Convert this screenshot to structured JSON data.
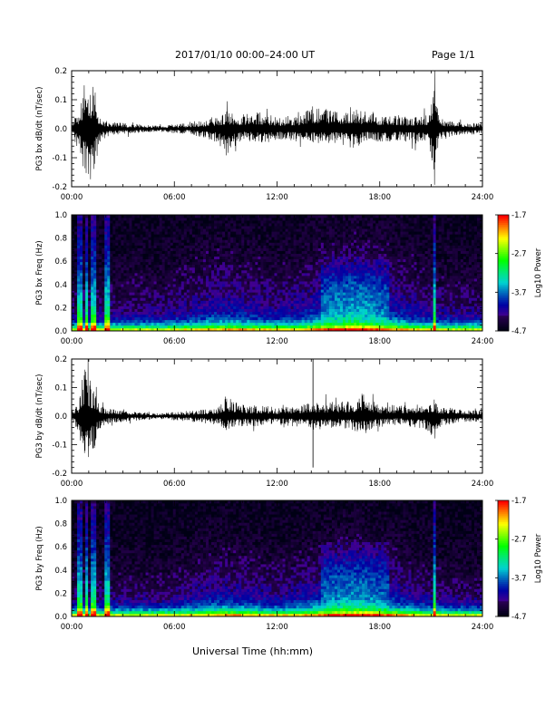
{
  "page": {
    "date_title": "2017/01/10   00:00–24:00 UT",
    "page_label": "Page 1/1",
    "x_axis_label": "Universal Time (hh:mm)"
  },
  "chart_data": [
    {
      "type": "line",
      "ylabel": "PG3 bx dB/dt (nT/sec)",
      "xlim": [
        0,
        24
      ],
      "ylim": [
        -0.2,
        0.2
      ],
      "x_ticks": [
        "00:00",
        "06:00",
        "12:00",
        "18:00",
        "24:00"
      ],
      "y_ticks": [
        "0.2",
        "0.1",
        "0.0",
        "-0.1",
        "-0.2"
      ],
      "y_tick_values": [
        0.2,
        0.1,
        0.0,
        -0.1,
        -0.2
      ],
      "color": "#000000",
      "activity_envelope": {
        "hours": [
          0,
          0.4,
          0.8,
          1.0,
          1.3,
          1.6,
          2.0,
          3.0,
          5.0,
          7.0,
          8.5,
          9.0,
          10.0,
          11.0,
          12.0,
          13.5,
          14.0,
          15.5,
          16.5,
          17.0,
          17.5,
          18.0,
          19.0,
          20.0,
          20.8,
          21.2,
          21.5,
          22.0,
          23.0,
          24.0
        ],
        "pos": [
          0.02,
          0.06,
          0.17,
          0.12,
          0.18,
          0.05,
          0.03,
          0.02,
          0.01,
          0.02,
          0.04,
          0.06,
          0.05,
          0.06,
          0.04,
          0.05,
          0.08,
          0.06,
          0.08,
          0.06,
          0.07,
          0.04,
          0.05,
          0.04,
          0.05,
          0.15,
          0.04,
          0.03,
          0.02,
          0.02
        ],
        "neg": [
          0.02,
          0.08,
          0.16,
          0.22,
          0.15,
          0.06,
          0.03,
          0.02,
          0.01,
          0.02,
          0.05,
          0.1,
          0.04,
          0.05,
          0.04,
          0.05,
          0.05,
          0.05,
          0.07,
          0.05,
          0.04,
          0.05,
          0.04,
          0.05,
          0.06,
          0.16,
          0.05,
          0.03,
          0.02,
          0.02
        ]
      }
    },
    {
      "type": "heatmap",
      "ylabel": "PG3 bx Freq (Hz)",
      "xlim": [
        0,
        24
      ],
      "ylim": [
        0,
        1.0
      ],
      "x_ticks": [
        "00:00",
        "06:00",
        "12:00",
        "18:00",
        "24:00"
      ],
      "y_ticks": [
        "1.0",
        "0.8",
        "0.6",
        "0.4",
        "0.2",
        "0.0"
      ],
      "y_tick_values": [
        1.0,
        0.8,
        0.6,
        0.4,
        0.2,
        0.0
      ],
      "colorbar": {
        "label": "Log10 Power",
        "ticks": [
          "-1.7",
          "-2.7",
          "-3.7",
          "-4.7"
        ],
        "tick_values": [
          -1.7,
          -2.7,
          -3.7,
          -4.7
        ],
        "range": [
          -4.7,
          -1.7
        ]
      },
      "bright_bands_hours": [
        0.5,
        0.9,
        1.2,
        1.4,
        2.1,
        21.2
      ]
    },
    {
      "type": "line",
      "ylabel": "PG3 by dB/dt (nT/sec)",
      "xlim": [
        0,
        24
      ],
      "ylim": [
        -0.2,
        0.2
      ],
      "x_ticks": [
        "00:00",
        "06:00",
        "12:00",
        "18:00",
        "24:00"
      ],
      "y_ticks": [
        "0.2",
        "0.1",
        "0.0",
        "-0.1",
        "-0.2"
      ],
      "y_tick_values": [
        0.2,
        0.1,
        0.0,
        -0.1,
        -0.2
      ],
      "color": "#000000",
      "activity_envelope": {
        "hours": [
          0,
          0.4,
          0.8,
          1.0,
          1.3,
          1.6,
          2.0,
          3.0,
          5.0,
          7.0,
          8.5,
          9.0,
          10.0,
          11.0,
          12.0,
          13.5,
          14.0,
          15.5,
          16.5,
          17.0,
          17.5,
          18.0,
          19.0,
          20.0,
          20.8,
          21.2,
          21.5,
          22.0,
          23.0,
          24.0
        ],
        "pos": [
          0.02,
          0.05,
          0.2,
          0.14,
          0.09,
          0.04,
          0.03,
          0.02,
          0.01,
          0.02,
          0.03,
          0.07,
          0.04,
          0.04,
          0.03,
          0.04,
          0.05,
          0.05,
          0.06,
          0.08,
          0.06,
          0.04,
          0.04,
          0.04,
          0.05,
          0.06,
          0.03,
          0.03,
          0.02,
          0.02
        ],
        "neg": [
          0.02,
          0.06,
          0.17,
          0.15,
          0.13,
          0.05,
          0.03,
          0.02,
          0.01,
          0.02,
          0.03,
          0.05,
          0.04,
          0.04,
          0.03,
          0.04,
          0.05,
          0.04,
          0.05,
          0.07,
          0.05,
          0.04,
          0.03,
          0.04,
          0.05,
          0.09,
          0.04,
          0.03,
          0.02,
          0.02
        ]
      },
      "spike": {
        "hour": 14.1,
        "max": 0.2,
        "min": -0.18
      }
    },
    {
      "type": "heatmap",
      "ylabel": "PG3 by Freq (Hz)",
      "xlim": [
        0,
        24
      ],
      "ylim": [
        0,
        1.0
      ],
      "x_ticks": [
        "00:00",
        "06:00",
        "12:00",
        "18:00",
        "24:00"
      ],
      "y_ticks": [
        "1.0",
        "0.8",
        "0.6",
        "0.4",
        "0.2",
        "0.0"
      ],
      "y_tick_values": [
        1.0,
        0.8,
        0.6,
        0.4,
        0.2,
        0.0
      ],
      "colorbar": {
        "label": "Log10 Power",
        "ticks": [
          "-1.7",
          "-2.7",
          "-3.7",
          "-4.7"
        ],
        "tick_values": [
          -1.7,
          -2.7,
          -3.7,
          -4.7
        ],
        "range": [
          -4.7,
          -1.7
        ]
      },
      "bright_bands_hours": [
        0.5,
        0.9,
        1.2,
        1.4,
        2.1,
        21.2
      ]
    }
  ]
}
